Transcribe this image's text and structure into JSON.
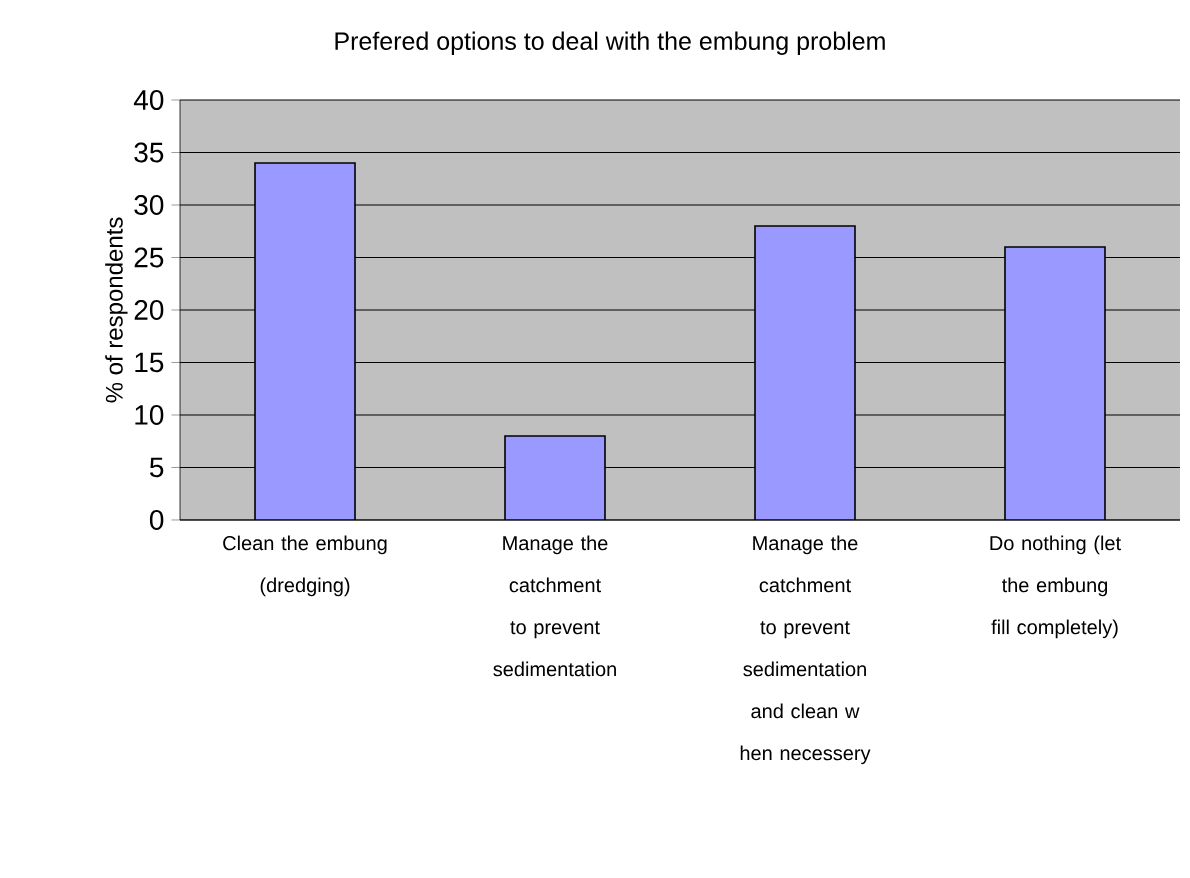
{
  "chart_data": {
    "type": "bar",
    "title": "Prefered options to deal with the embung problem",
    "ylabel": "% of respondents",
    "categories": [
      "Clean the embung (dredging)",
      "Manage the catchment to prevent sedimentation",
      "Manage the catchment to prevent sedimentation and clean w hen necessery",
      "Do nothing (let the embung fill completely)"
    ],
    "values": [
      34,
      8,
      28,
      26
    ],
    "color": "#9999ff",
    "ylim": [
      0,
      40
    ],
    "yticks": [
      0,
      5,
      10,
      15,
      20,
      25,
      30,
      35,
      40
    ],
    "grid": "y"
  }
}
